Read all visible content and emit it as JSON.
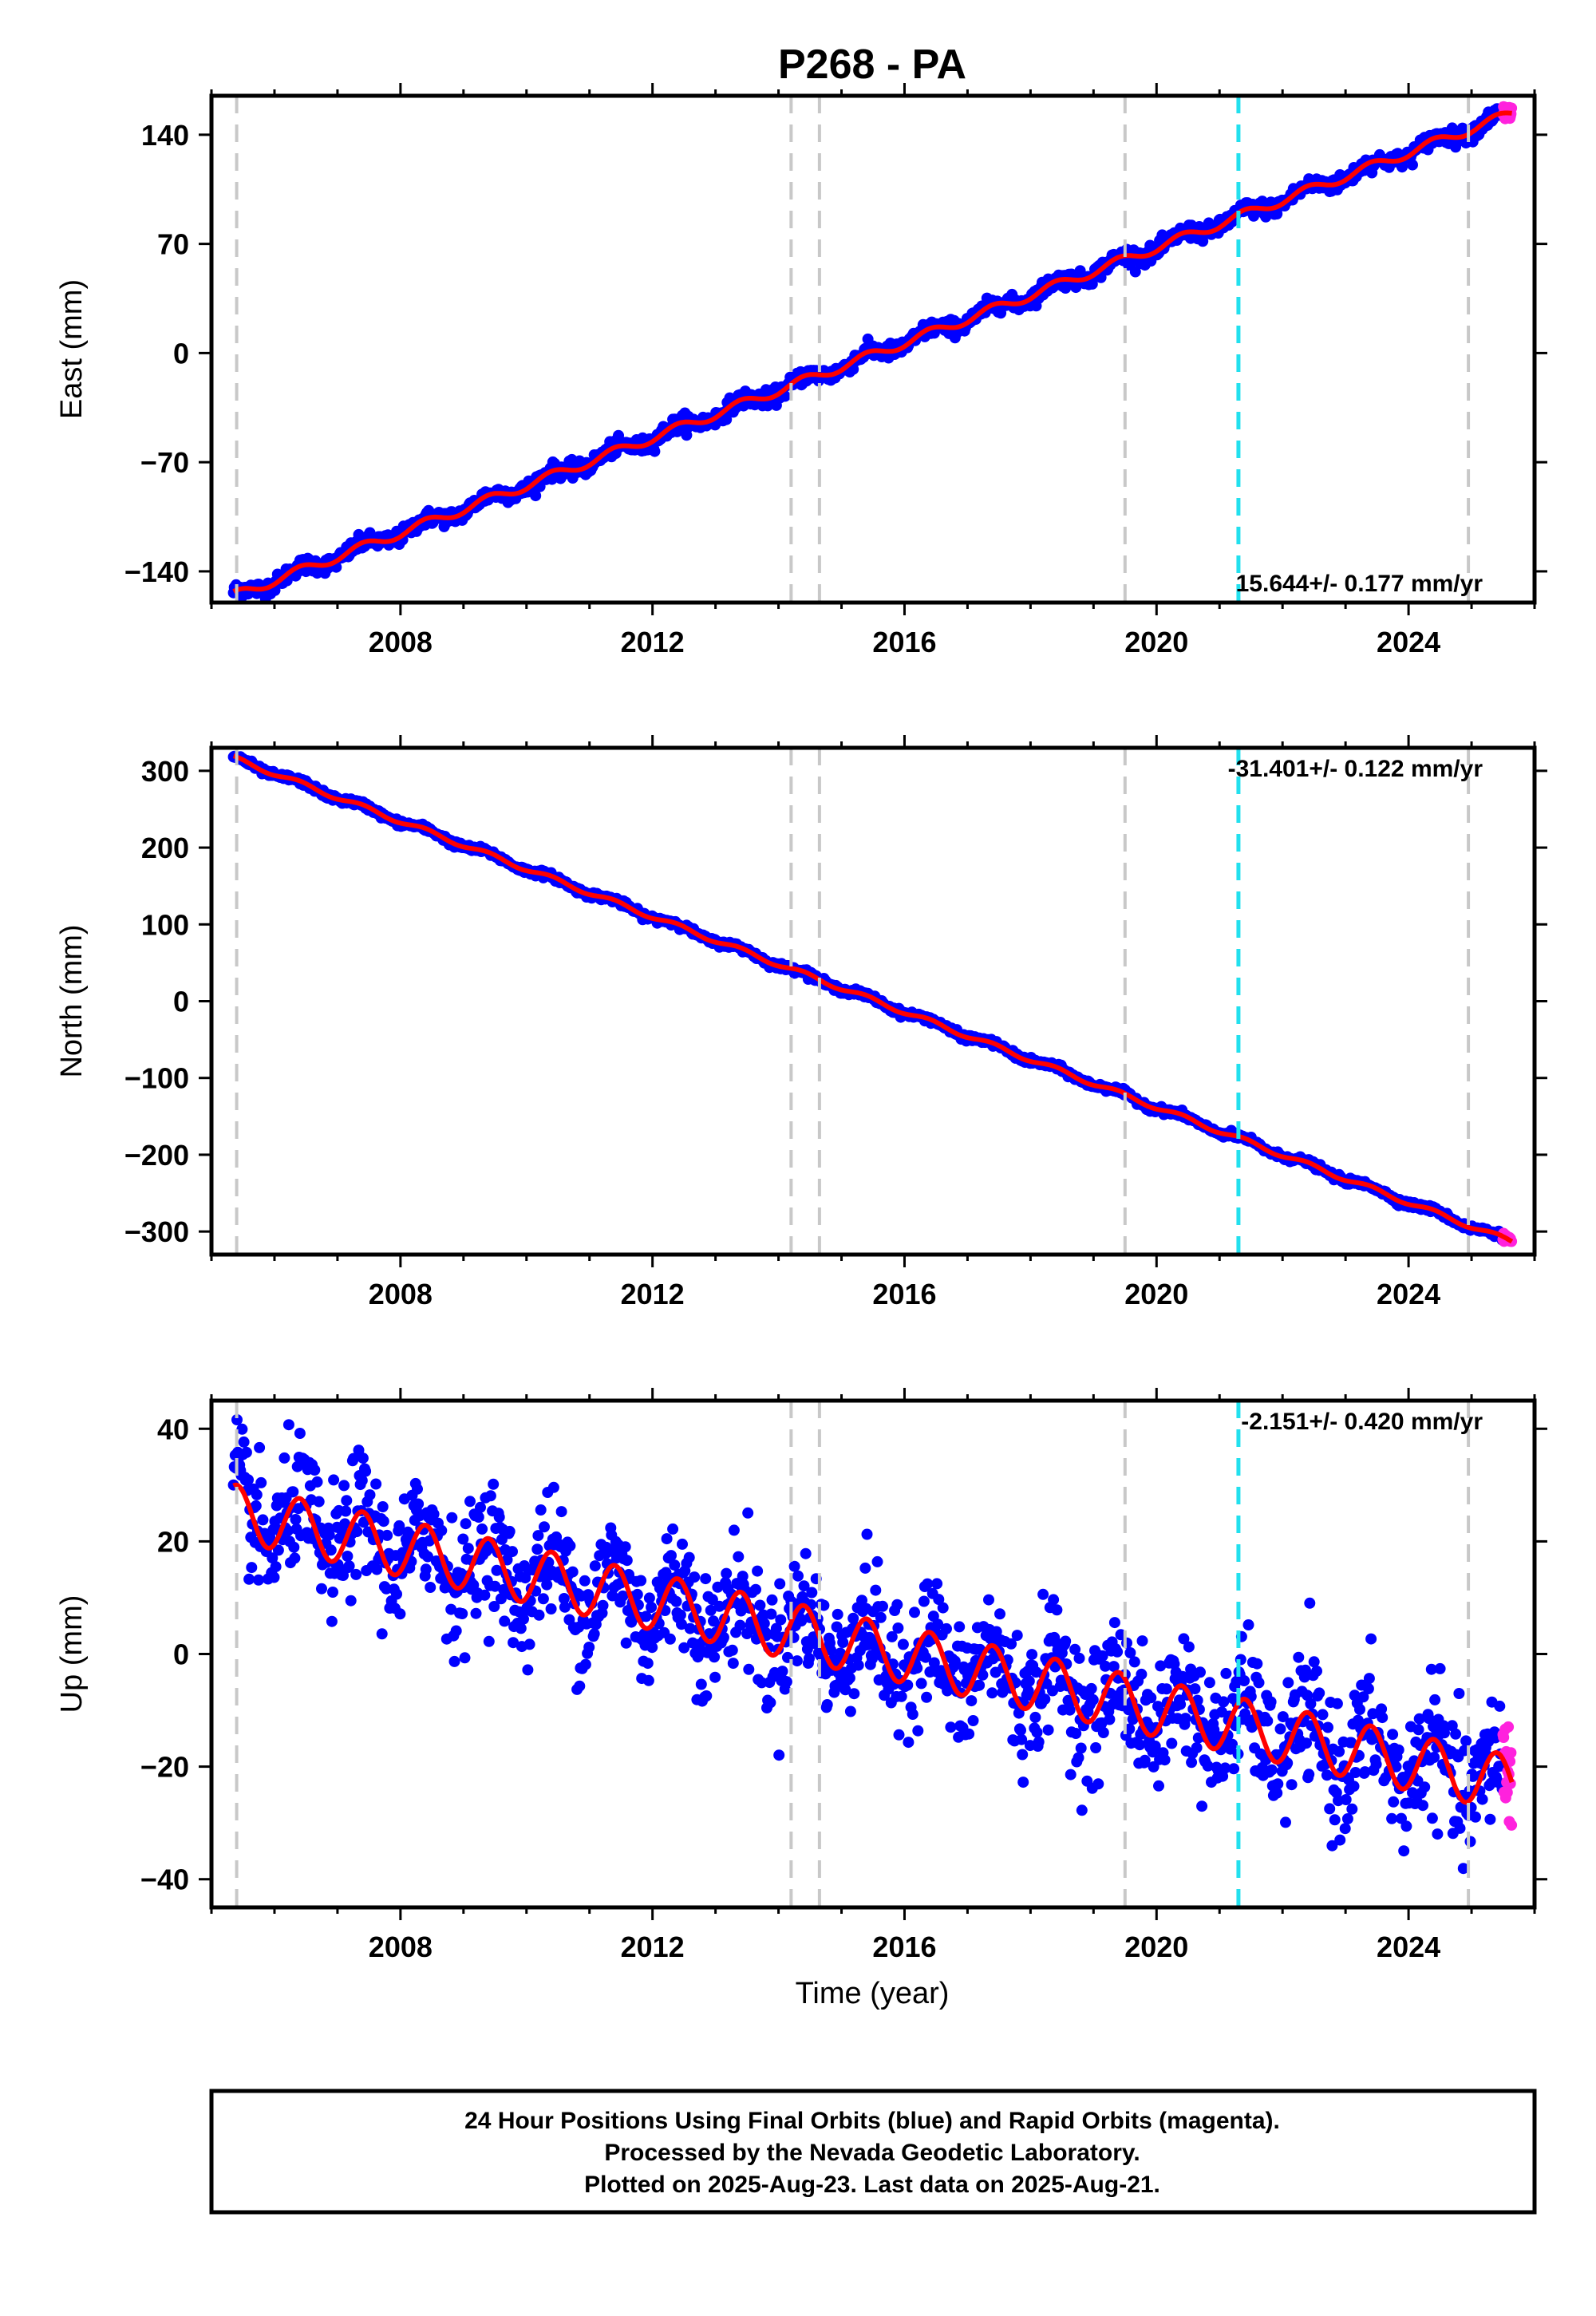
{
  "title": "P268 - PA",
  "xlabel": "Time (year)",
  "footer_lines": [
    "24 Hour Positions Using Final Orbits (blue) and Rapid Orbits (magenta).",
    "Processed by the Nevada Geodetic Laboratory.",
    "Plotted on 2025-Aug-23. Last data on 2025-Aug-21."
  ],
  "colors": {
    "final_orbits": "#0000ff",
    "rapid_orbits": "#ff22dd",
    "model_fit": "#ff0000",
    "equipment_change": "#c8c8c8",
    "event": "#22e0ee"
  },
  "chart_data": [
    {
      "type": "scatter",
      "panel": "east",
      "ylabel": "East (mm)",
      "rate_label": "15.644+/- 0.177 mm/yr",
      "xlim": [
        2005.0,
        2026.0
      ],
      "ylim": [
        -160,
        165
      ],
      "xticks": [
        2008,
        2012,
        2016,
        2020,
        2024
      ],
      "yticks": [
        -140,
        -70,
        0,
        70,
        140
      ],
      "trend": {
        "start": [
          2005.4,
          -155
        ],
        "end": [
          2025.6,
          153
        ]
      },
      "seasonal_amplitude": 3,
      "scatter_amplitude": 2.5,
      "series": [
        {
          "name": "Final Orbits",
          "x_range": [
            2005.35,
            2025.5
          ]
        },
        {
          "name": "Rapid Orbits",
          "x_range": [
            2025.5,
            2025.64
          ]
        },
        {
          "name": "Model",
          "x_range": [
            2005.35,
            2025.64
          ]
        }
      ]
    },
    {
      "type": "scatter",
      "panel": "north",
      "ylabel": "North (mm)",
      "rate_label": "-31.401+/- 0.122 mm/yr",
      "xlim": [
        2005.0,
        2026.0
      ],
      "ylim": [
        -330,
        330
      ],
      "xticks": [
        2008,
        2012,
        2016,
        2020,
        2024
      ],
      "yticks": [
        -300,
        -200,
        -100,
        0,
        100,
        200,
        300
      ],
      "trend": {
        "start": [
          2005.4,
          315
        ],
        "end": [
          2025.6,
          -312
        ]
      },
      "seasonal_amplitude": 3,
      "scatter_amplitude": 2,
      "series": [
        {
          "name": "Final Orbits",
          "x_range": [
            2005.35,
            2025.5
          ]
        },
        {
          "name": "Rapid Orbits",
          "x_range": [
            2025.5,
            2025.64
          ]
        },
        {
          "name": "Model",
          "x_range": [
            2005.35,
            2025.64
          ]
        }
      ]
    },
    {
      "type": "scatter",
      "panel": "up",
      "ylabel": "Up (mm)",
      "rate_label": "-2.151+/- 0.420 mm/yr",
      "xlim": [
        2005.0,
        2026.0
      ],
      "ylim": [
        -45,
        45
      ],
      "xticks": [
        2008,
        2012,
        2016,
        2020,
        2024
      ],
      "yticks": [
        -40,
        -20,
        0,
        20,
        40
      ],
      "trend": {
        "start": [
          2005.4,
          25
        ],
        "end": [
          2025.6,
          -23
        ]
      },
      "seasonal_amplitude": 5,
      "scatter_amplitude": 5.5,
      "series": [
        {
          "name": "Final Orbits",
          "x_range": [
            2005.35,
            2025.5
          ]
        },
        {
          "name": "Rapid Orbits",
          "x_range": [
            2025.5,
            2025.64
          ]
        },
        {
          "name": "Model",
          "x_range": [
            2005.35,
            2025.64
          ]
        }
      ]
    }
  ],
  "equipment_changes": [
    2005.4,
    2014.2,
    2014.65,
    2019.5,
    2024.95
  ],
  "events": [
    2021.3
  ]
}
